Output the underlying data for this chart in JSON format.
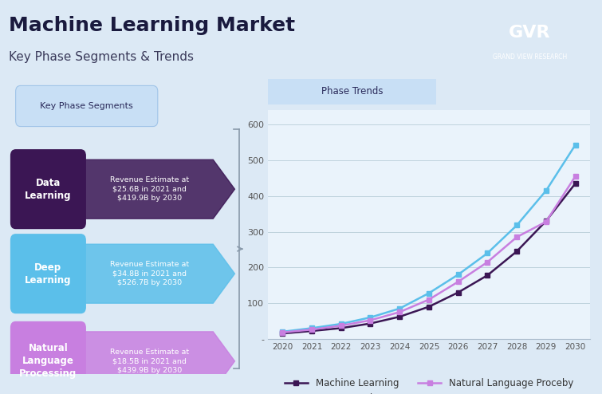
{
  "title": "Machine Learning Market",
  "subtitle": "Key Phase Segments & Trends",
  "bg_color": "#dce9f5",
  "header_bg": "#ffffff",
  "plot_bg": "#eaf3fb",
  "segments_label": "Key Phase Segments",
  "trends_label": "Phase Trends",
  "segments": [
    {
      "name": "Data\nLearning",
      "box_color": "#3b1654",
      "arrow_color": "#3b1654",
      "text": "Revenue Estimate at\n$25.6B in 2021 and\n$419.9B by 2030"
    },
    {
      "name": "Deep\nLearning",
      "box_color": "#5bbfea",
      "arrow_color": "#5bbfea",
      "text": "Revenue Estimate at\n$34.8B in 2021 and\n$526.7B by 2030"
    },
    {
      "name": "Natural\nLanguage\nProcessing",
      "box_color": "#c87fe0",
      "arrow_color": "#c87fe0",
      "text": "Revenue Estimate at\n$18.5B in 2021 and\n$439.9B by 2030"
    }
  ],
  "years": [
    2020,
    2021,
    2022,
    2023,
    2024,
    2025,
    2026,
    2027,
    2028,
    2029,
    2030
  ],
  "ml_values": [
    15,
    22,
    30,
    43,
    62,
    90,
    130,
    178,
    245,
    330,
    435
  ],
  "dl_values": [
    20,
    30,
    42,
    60,
    85,
    128,
    180,
    240,
    318,
    415,
    543
  ],
  "nlp_values": [
    18,
    26,
    37,
    52,
    75,
    110,
    160,
    215,
    285,
    328,
    455
  ],
  "ml_color": "#3b1654",
  "dl_color": "#5bbfea",
  "nlp_color": "#c87fe0",
  "ml_label": "Machine Learning",
  "dl_label": "Deep Learning",
  "nlp_label": "Natural Language Proceby",
  "ylim": [
    0,
    640
  ],
  "yticks": [
    0,
    100,
    200,
    300,
    400,
    500,
    600
  ],
  "ytick_labels": [
    "-",
    "100",
    "200",
    "300",
    "400",
    "500",
    "600"
  ],
  "logo_text": "GVR",
  "logo_subtext": "GRAND VIEW RESEARCH",
  "logo_bg": "#1a2a4a"
}
